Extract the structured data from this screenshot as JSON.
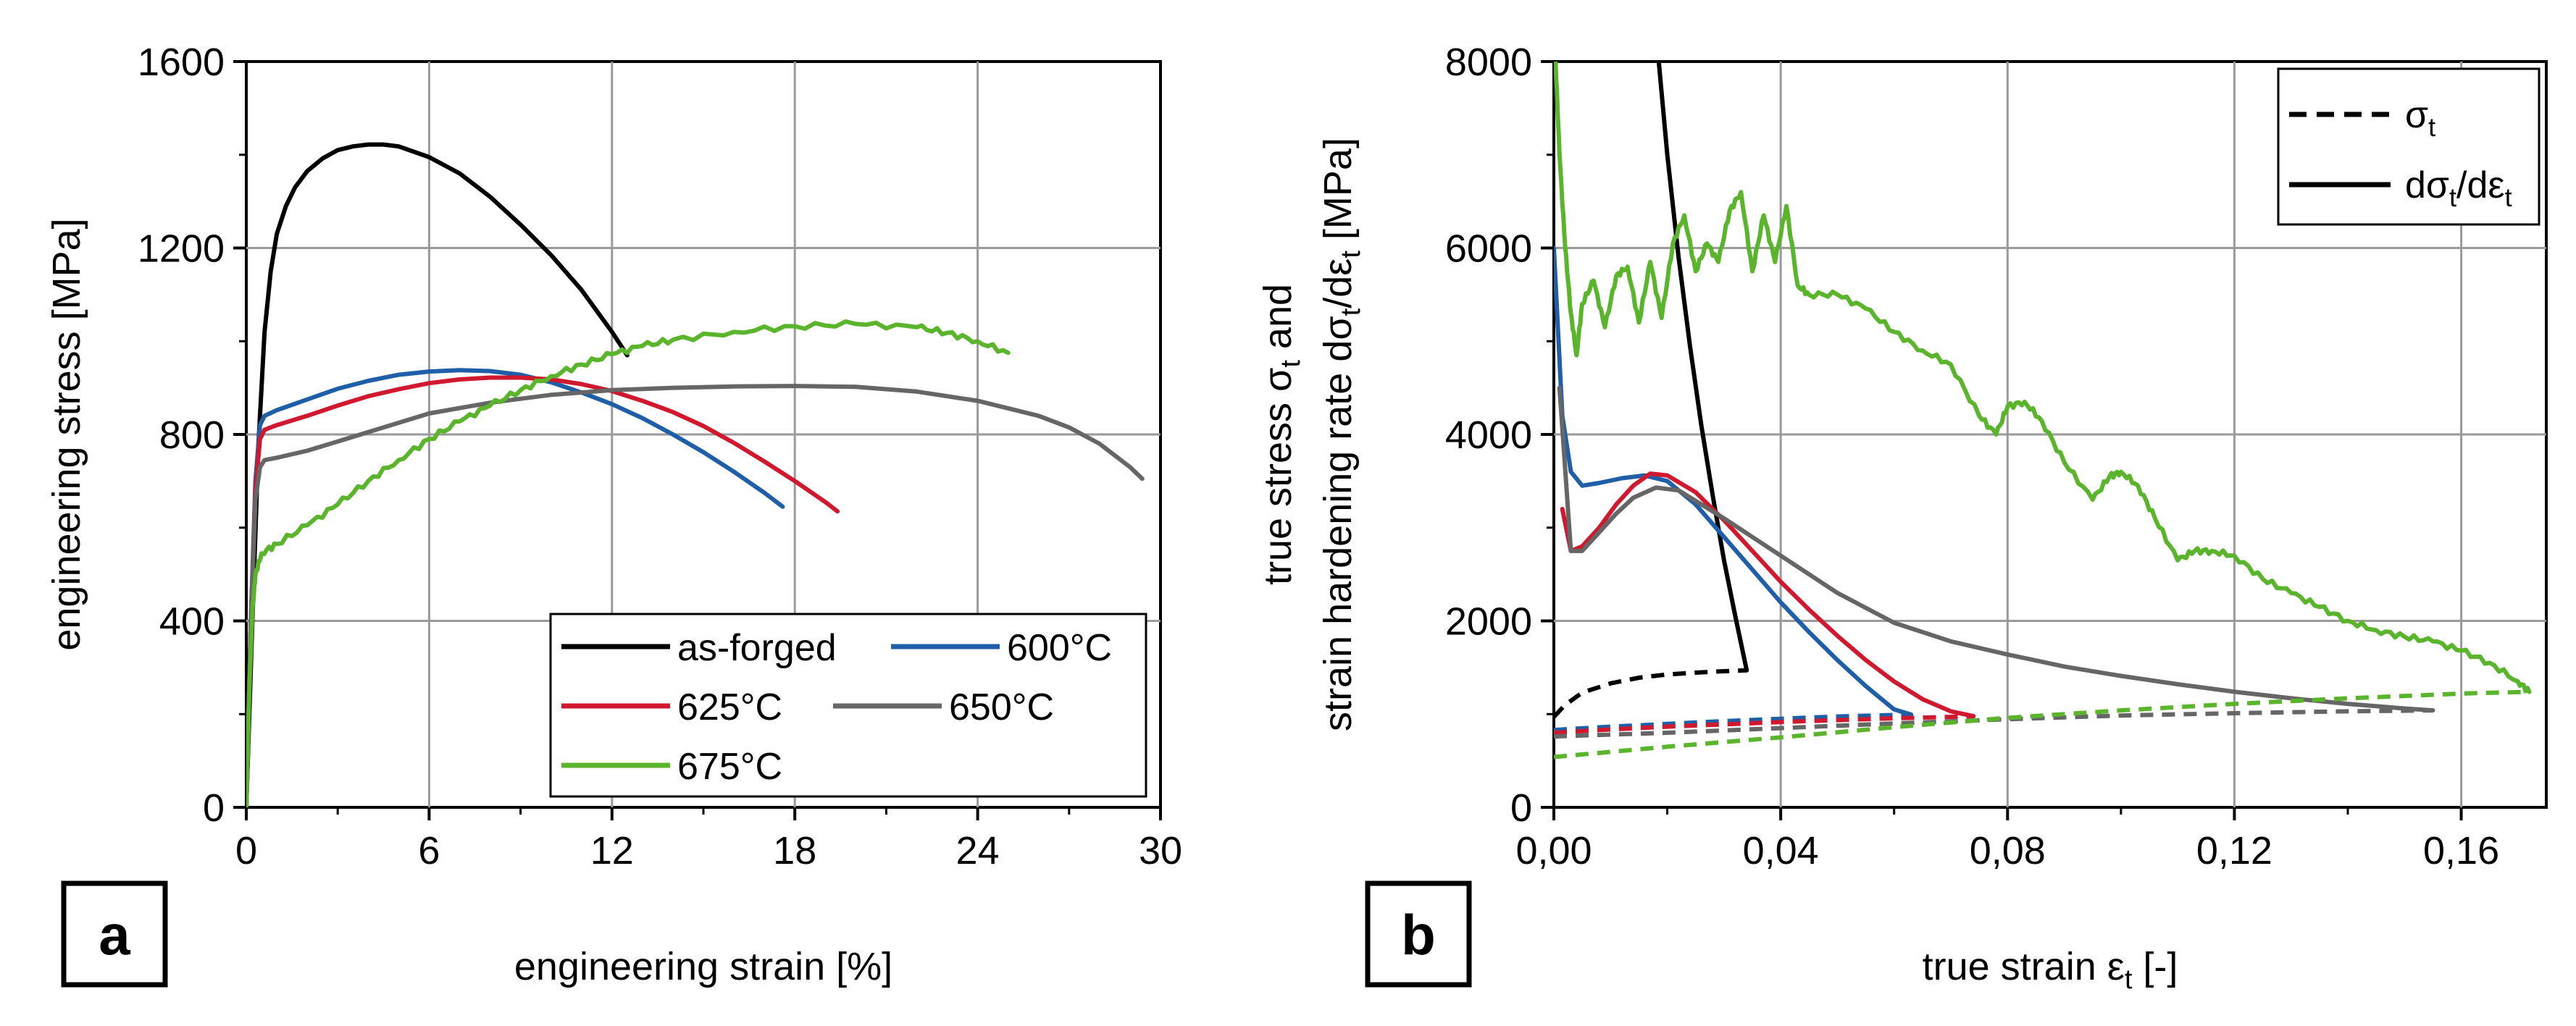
{
  "colors": {
    "as_forged": "#000000",
    "c600": "#1f5fa8",
    "c625": "#d0192e",
    "c650": "#666666",
    "c675": "#5ab52c",
    "grid": "#9a9a9a"
  },
  "chart_data": [
    {
      "id": "a",
      "type": "line",
      "panel_label": "a",
      "title": "",
      "xlabel": "engineering strain [%]",
      "ylabel": "engineering stress [MPa]",
      "xlim": [
        0,
        30
      ],
      "ylim": [
        0,
        1600
      ],
      "xticks": [
        0,
        6,
        12,
        18,
        24,
        30
      ],
      "yticks": [
        0,
        400,
        800,
        1200,
        1600
      ],
      "grid": true,
      "legend_position": "bottom-right",
      "series": [
        {
          "name": "as-forged",
          "color_key": "as_forged",
          "style": "solid",
          "x": [
            0,
            0.2,
            0.4,
            0.6,
            0.8,
            1.0,
            1.3,
            1.6,
            2.0,
            2.5,
            3.0,
            3.5,
            4.0,
            4.5,
            5.0,
            6.0,
            7.0,
            8.0,
            9.0,
            10.0,
            11.0,
            12.0,
            12.5
          ],
          "y": [
            0,
            400,
            780,
            1020,
            1150,
            1230,
            1290,
            1330,
            1365,
            1392,
            1410,
            1418,
            1422,
            1422,
            1418,
            1395,
            1360,
            1310,
            1250,
            1185,
            1110,
            1020,
            970
          ]
        },
        {
          "name": "600°C",
          "color_key": "c600",
          "style": "solid",
          "x": [
            0,
            0.15,
            0.3,
            0.45,
            0.6,
            1.0,
            2.0,
            3.0,
            4.0,
            5.0,
            6.0,
            7.0,
            8.0,
            9.0,
            10.0,
            11.0,
            12.0,
            13.0,
            14.0,
            15.0,
            16.0,
            17.0,
            17.6
          ],
          "y": [
            0,
            400,
            700,
            820,
            840,
            852,
            875,
            898,
            915,
            928,
            935,
            938,
            936,
            928,
            912,
            890,
            865,
            835,
            800,
            762,
            720,
            675,
            645
          ]
        },
        {
          "name": "625°C",
          "color_key": "c625",
          "style": "solid",
          "x": [
            0,
            0.15,
            0.3,
            0.45,
            0.6,
            1.0,
            2.0,
            3.0,
            4.0,
            5.0,
            6.0,
            7.0,
            8.0,
            9.0,
            10.0,
            11.0,
            12.0,
            13.0,
            14.0,
            15.0,
            16.0,
            17.0,
            18.0,
            19.0,
            19.4
          ],
          "y": [
            0,
            400,
            680,
            790,
            810,
            820,
            840,
            862,
            882,
            897,
            910,
            918,
            922,
            922,
            918,
            908,
            893,
            872,
            848,
            818,
            782,
            742,
            700,
            655,
            635
          ]
        },
        {
          "name": "650°C",
          "color_key": "c650",
          "style": "solid",
          "x": [
            0,
            0.15,
            0.3,
            0.45,
            0.6,
            1.0,
            2.0,
            3.0,
            4.0,
            6.0,
            8.0,
            10.0,
            12.0,
            14.0,
            16.0,
            18.0,
            20.0,
            22.0,
            24.0,
            26.0,
            27.0,
            28.0,
            29.0,
            29.4
          ],
          "y": [
            0,
            400,
            660,
            730,
            745,
            750,
            765,
            785,
            805,
            845,
            868,
            885,
            895,
            900,
            903,
            904,
            902,
            892,
            872,
            840,
            815,
            780,
            730,
            705
          ]
        },
        {
          "name": "675°C",
          "color_key": "c675",
          "style": "wavy",
          "x": [
            0,
            0.1,
            0.2,
            0.3,
            0.5,
            1.0,
            2.0,
            3.0,
            4.0,
            5.0,
            6.0,
            7.0,
            8.0,
            9.0,
            10.0,
            11.0,
            12.0,
            13.0,
            14.0,
            16.0,
            18.0,
            20.0,
            22.0,
            23.0,
            24.0,
            25.0
          ],
          "y": [
            0,
            250,
            420,
            500,
            545,
            565,
            605,
            650,
            700,
            745,
            790,
            828,
            862,
            895,
            925,
            950,
            972,
            990,
            1003,
            1020,
            1032,
            1037,
            1030,
            1018,
            1000,
            975
          ]
        }
      ]
    },
    {
      "id": "b",
      "type": "line",
      "panel_label": "b",
      "title": "",
      "xlabel_main": "true strain ε",
      "xlabel_sub": "t",
      "xlabel_tail": " [-]",
      "ylabel_line1_main": "true stress σ",
      "ylabel_line1_sub": "t",
      "ylabel_line1_tail": " and",
      "ylabel_line2_main": "strain hardening rate dσ",
      "ylabel_line2_sub1": "t",
      "ylabel_line2_mid": "/dε",
      "ylabel_line2_sub2": "t",
      "ylabel_line2_tail": " [MPa]",
      "xlim": [
        0,
        0.175
      ],
      "ylim": [
        0,
        8000
      ],
      "xticks": [
        0,
        0.04,
        0.08,
        0.12,
        0.16
      ],
      "xtick_labels": [
        "0,00",
        "0,04",
        "0,08",
        "0,12",
        "0,16"
      ],
      "yticks": [
        0,
        2000,
        4000,
        6000,
        8000
      ],
      "grid": true,
      "legend_position": "top-right",
      "legend": [
        {
          "style": "dashed",
          "main": "σ",
          "sub": "t",
          "tail": ""
        },
        {
          "style": "solid",
          "main": "dσ",
          "sub": "t",
          "mid": "/dε",
          "sub2": "t"
        }
      ],
      "series": [
        {
          "name": "as-forged σt",
          "color_key": "as_forged",
          "style": "dashed",
          "x": [
            0,
            0.002,
            0.005,
            0.01,
            0.015,
            0.02,
            0.025,
            0.03,
            0.034
          ],
          "y": [
            970,
            1100,
            1230,
            1330,
            1390,
            1425,
            1445,
            1460,
            1470
          ]
        },
        {
          "name": "as-forged dσt/dεt",
          "color_key": "as_forged",
          "style": "solid",
          "x": [
            0.0185,
            0.02,
            0.022,
            0.024,
            0.026,
            0.028,
            0.03,
            0.032,
            0.034
          ],
          "y": [
            8000,
            7000,
            5900,
            4950,
            4100,
            3350,
            2650,
            2050,
            1470
          ]
        },
        {
          "name": "600°C σt",
          "color_key": "c600",
          "style": "dashed",
          "x": [
            0,
            0.01,
            0.02,
            0.03,
            0.04,
            0.05,
            0.06,
            0.063
          ],
          "y": [
            830,
            865,
            895,
            925,
            950,
            975,
            990,
            995
          ]
        },
        {
          "name": "600°C dσt/dεt",
          "color_key": "c600",
          "style": "solid",
          "x": [
            0,
            0.0015,
            0.003,
            0.005,
            0.008,
            0.012,
            0.016,
            0.02,
            0.025,
            0.03,
            0.035,
            0.04,
            0.045,
            0.05,
            0.055,
            0.06,
            0.063
          ],
          "y": [
            6000,
            4200,
            3600,
            3450,
            3480,
            3530,
            3560,
            3500,
            3250,
            2900,
            2550,
            2200,
            1880,
            1580,
            1300,
            1050,
            995
          ]
        },
        {
          "name": "625°C σt",
          "color_key": "c625",
          "style": "dashed",
          "x": [
            0,
            0.01,
            0.02,
            0.03,
            0.04,
            0.05,
            0.06,
            0.07,
            0.074
          ],
          "y": [
            800,
            835,
            865,
            890,
            915,
            935,
            955,
            970,
            978
          ]
        },
        {
          "name": "625°C dσt/dεt",
          "color_key": "c625",
          "style": "solid",
          "x": [
            0.0015,
            0.003,
            0.005,
            0.008,
            0.011,
            0.014,
            0.017,
            0.02,
            0.025,
            0.03,
            0.035,
            0.04,
            0.045,
            0.05,
            0.055,
            0.06,
            0.065,
            0.07,
            0.074
          ],
          "y": [
            3200,
            2750,
            2800,
            3000,
            3250,
            3450,
            3580,
            3560,
            3380,
            3080,
            2750,
            2420,
            2120,
            1840,
            1580,
            1350,
            1160,
            1030,
            978
          ]
        },
        {
          "name": "650°C σt",
          "color_key": "c650",
          "style": "dashed",
          "x": [
            0,
            0.02,
            0.04,
            0.06,
            0.08,
            0.1,
            0.12,
            0.14,
            0.155
          ],
          "y": [
            760,
            800,
            850,
            900,
            945,
            985,
            1010,
            1030,
            1040
          ]
        },
        {
          "name": "650°C dσt/dεt",
          "color_key": "c650",
          "style": "solid",
          "x": [
            0.001,
            0.003,
            0.005,
            0.008,
            0.011,
            0.014,
            0.018,
            0.022,
            0.026,
            0.03,
            0.04,
            0.05,
            0.06,
            0.07,
            0.08,
            0.09,
            0.1,
            0.11,
            0.12,
            0.13,
            0.14,
            0.15,
            0.155
          ],
          "y": [
            4500,
            2750,
            2750,
            2950,
            3150,
            3320,
            3430,
            3400,
            3250,
            3100,
            2700,
            2300,
            1980,
            1780,
            1640,
            1510,
            1410,
            1320,
            1240,
            1170,
            1110,
            1060,
            1040
          ]
        },
        {
          "name": "675°C σt",
          "color_key": "c675",
          "style": "dashed",
          "x": [
            0,
            0.02,
            0.04,
            0.06,
            0.08,
            0.1,
            0.12,
            0.14,
            0.16,
            0.172
          ],
          "y": [
            540,
            650,
            750,
            860,
            960,
            1040,
            1110,
            1170,
            1220,
            1240
          ]
        },
        {
          "name": "675°C dσt/dεt",
          "color_key": "c675",
          "style": "wavy",
          "x": [
            0.0003,
            0.001,
            0.002,
            0.003,
            0.004,
            0.005,
            0.007,
            0.009,
            0.011,
            0.013,
            0.015,
            0.017,
            0.019,
            0.021,
            0.023,
            0.025,
            0.027,
            0.029,
            0.031,
            0.033,
            0.035,
            0.037,
            0.039,
            0.041,
            0.043,
            0.045,
            0.05,
            0.055,
            0.06,
            0.065,
            0.07,
            0.075,
            0.078,
            0.08,
            0.083,
            0.086,
            0.09,
            0.095,
            0.098,
            0.1,
            0.103,
            0.106,
            0.11,
            0.113,
            0.116,
            0.12,
            0.125,
            0.13,
            0.135,
            0.14,
            0.145,
            0.15,
            0.155,
            0.16,
            0.165,
            0.17,
            0.172
          ],
          "y": [
            8000,
            7000,
            6000,
            5300,
            4850,
            5400,
            5650,
            5150,
            5700,
            5800,
            5200,
            5850,
            5250,
            6050,
            6350,
            5750,
            6050,
            5850,
            6400,
            6600,
            5750,
            6350,
            5850,
            6450,
            5600,
            5500,
            5500,
            5350,
            5100,
            4900,
            4750,
            4200,
            4000,
            4300,
            4350,
            4150,
            3700,
            3300,
            3550,
            3600,
            3450,
            3100,
            2650,
            2750,
            2750,
            2700,
            2450,
            2300,
            2150,
            2000,
            1900,
            1830,
            1780,
            1680,
            1550,
            1350,
            1240
          ]
        }
      ]
    }
  ]
}
